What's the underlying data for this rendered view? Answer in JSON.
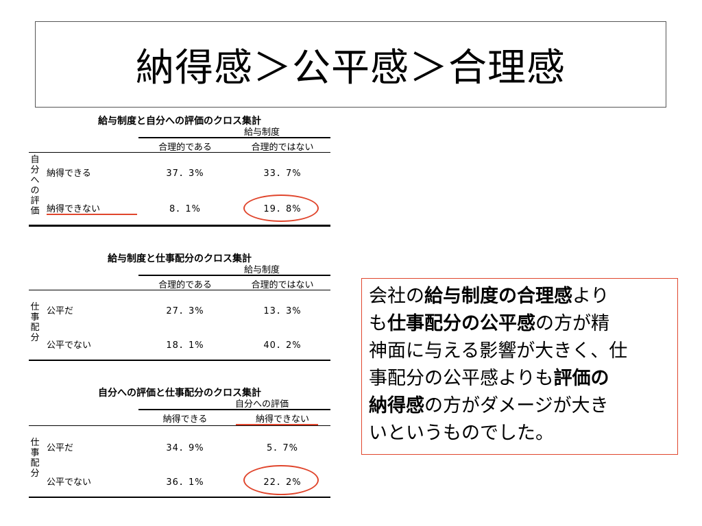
{
  "slide": {
    "title": "納得感＞公平感＞合理感"
  },
  "table1": {
    "caption": "給与制度と自分への評価のクロス集計",
    "col_group": "給与制度",
    "col1": "合理的である",
    "col2": "合理的ではない",
    "row_group": [
      "自",
      "分",
      "へ",
      "の",
      "評",
      "価"
    ],
    "rows": [
      {
        "label": "納得できる",
        "v1": "37．3%",
        "v2": "33．7%"
      },
      {
        "label": "納得できない",
        "v1": "8．1%",
        "v2": "19．8%"
      }
    ]
  },
  "table2": {
    "caption": "給与制度と仕事配分のクロス集計",
    "col_group": "給与制度",
    "col1": "合理的である",
    "col2": "合理的ではない",
    "row_group": [
      "仕",
      "事",
      "配",
      "分"
    ],
    "rows": [
      {
        "label": "公平だ",
        "v1": "27．3%",
        "v2": "13．3%"
      },
      {
        "label": "公平でない",
        "v1": "18．1%",
        "v2": "40．2%"
      }
    ]
  },
  "table3": {
    "caption": "自分への評価と仕事配分のクロス集計",
    "col_group": "自分への評価",
    "col1": "納得できる",
    "col2": "納得できない",
    "row_group": [
      "仕",
      "事",
      "配",
      "分"
    ],
    "rows": [
      {
        "label": "公平だ",
        "v1": "34．9%",
        "v2": "5．7%"
      },
      {
        "label": "公平でない",
        "v1": "36．1%",
        "v2": "22．2%"
      }
    ]
  },
  "note": {
    "p1": "会社の",
    "b1": "給与制度の合理感",
    "p2": "より",
    "p3": "も",
    "b2": "仕事配分の公平感",
    "p4": "の方が精",
    "p5": "神面に与える影響が大きく、仕",
    "p6": "事配分の公平感よりも",
    "b3": "評価の",
    "b4": "納得感",
    "p7": "の方がダメージが大き",
    "p8": "いというものでした。"
  },
  "colors": {
    "highlight": "#e0452c",
    "border": "#555555"
  }
}
